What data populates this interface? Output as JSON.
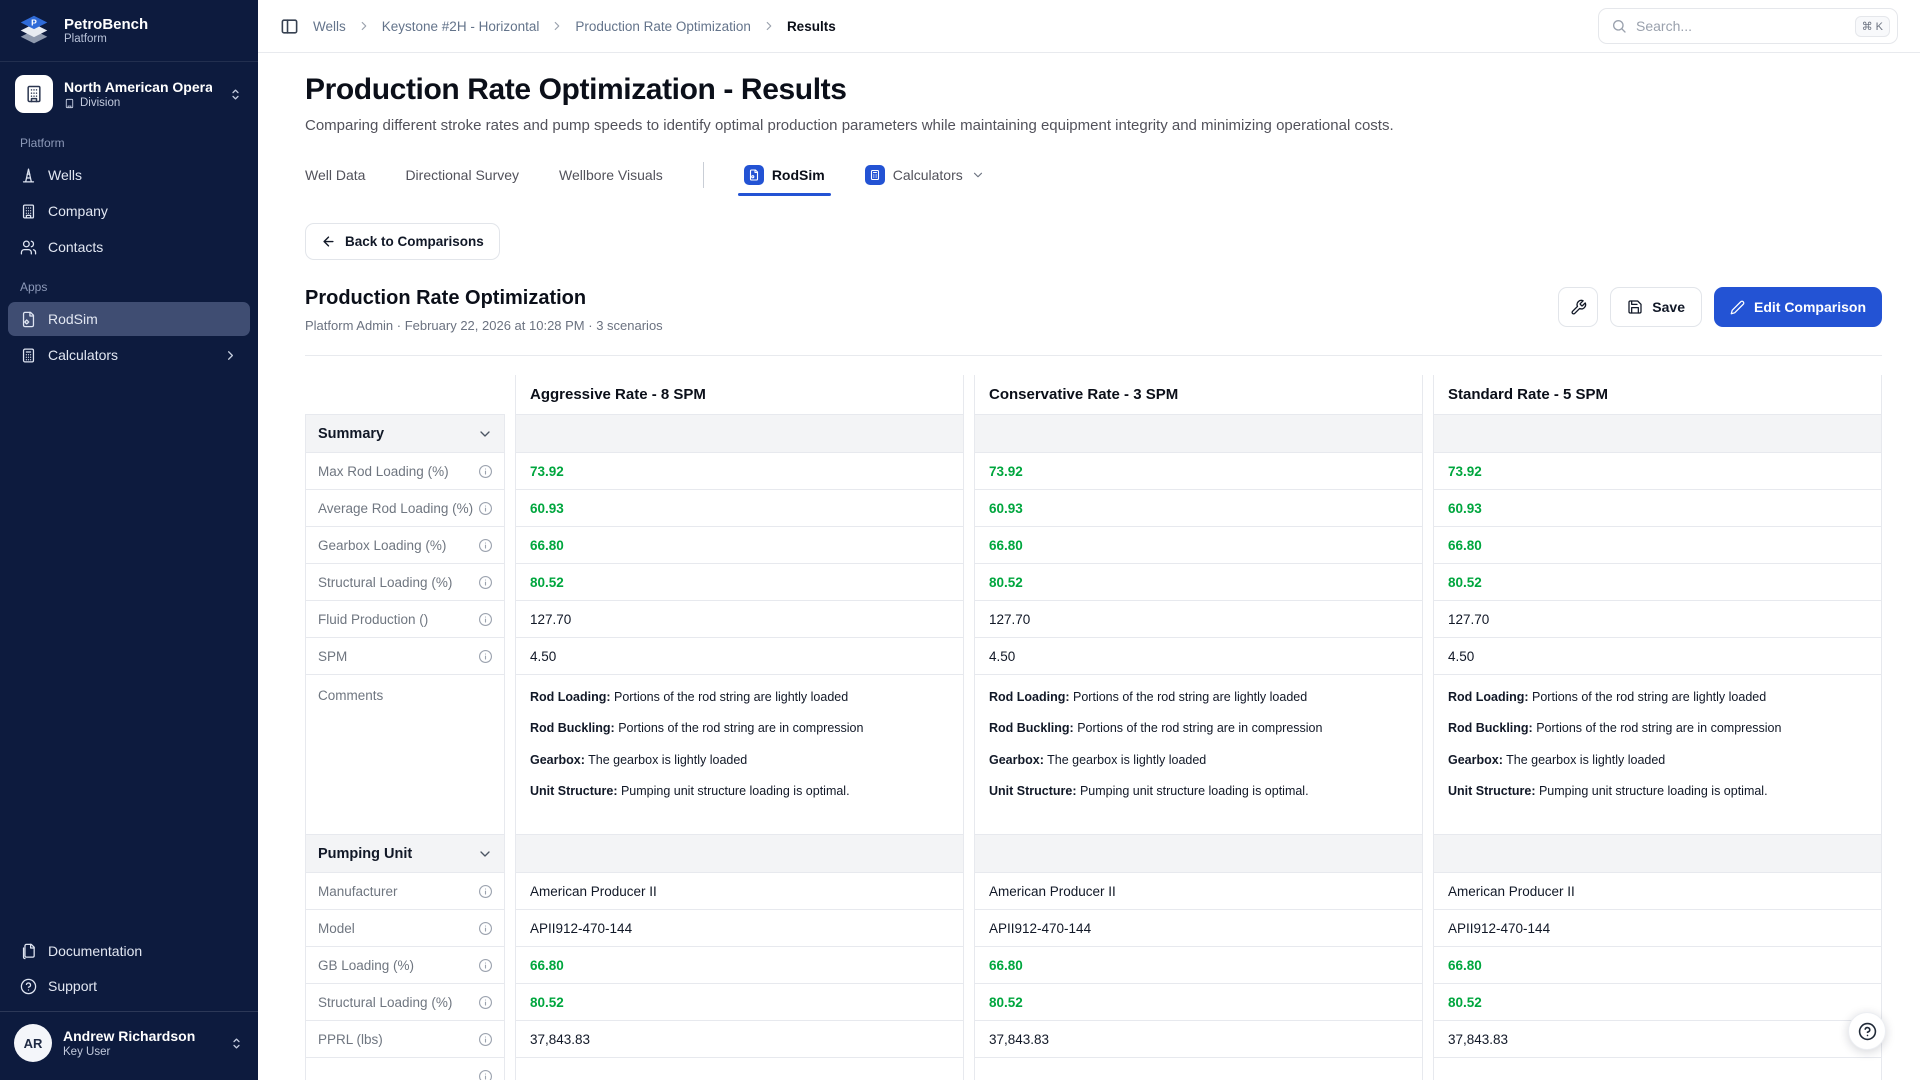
{
  "colors": {
    "accent": "#2353d4",
    "positive_value": "#00a63e",
    "sidebar_bg": "#0d1b3e"
  },
  "sidebar": {
    "brand": {
      "name": "PetroBench",
      "subtitle": "Platform"
    },
    "org": {
      "name": "North American Opera",
      "type": "Division"
    },
    "sections": [
      {
        "label": "Platform",
        "items": [
          {
            "label": "Wells",
            "icon": "derrick-icon"
          },
          {
            "label": "Company",
            "icon": "building-icon"
          },
          {
            "label": "Contacts",
            "icon": "users-icon"
          }
        ]
      },
      {
        "label": "Apps",
        "items": [
          {
            "label": "RodSim",
            "icon": "rodsim-app-icon",
            "active": true
          },
          {
            "label": "Calculators",
            "icon": "calculator-icon",
            "chevron": true
          }
        ]
      }
    ],
    "footer": {
      "documentation_label": "Documentation",
      "support_label": "Support",
      "user": {
        "initials": "AR",
        "name": "Andrew Richardson",
        "role": "Key User"
      }
    }
  },
  "topbar": {
    "breadcrumbs": [
      "Wells",
      "Keystone #2H - Horizontal",
      "Production Rate Optimization",
      "Results"
    ],
    "search": {
      "placeholder": "Search...",
      "shortcut": "⌘ K"
    }
  },
  "page": {
    "title": "Production Rate Optimization - Results",
    "subtitle": "Comparing different stroke rates and pump speeds to identify optimal production parameters while maintaining equipment integrity and minimizing operational costs."
  },
  "tabs": {
    "items": [
      {
        "label": "Well Data"
      },
      {
        "label": "Directional Survey"
      },
      {
        "label": "Wellbore Visuals"
      },
      {
        "label": "RodSim",
        "active": true,
        "app_icon": "rodsim-app-icon"
      },
      {
        "label": "Calculators",
        "app_icon": "calculator-icon",
        "dropdown": true
      }
    ]
  },
  "toolbar": {
    "back_label": "Back to Comparisons",
    "section_title": "Production Rate Optimization",
    "meta": "Platform Admin · February 22, 2026 at 10:28 PM · 3 scenarios",
    "save_label": "Save",
    "edit_label": "Edit Comparison"
  },
  "comparison": {
    "scenarios": [
      "Aggressive Rate - 8 SPM",
      "Conservative Rate - 3 SPM",
      "Standard Rate - 5 SPM"
    ],
    "sections": [
      {
        "title": "Summary",
        "rows": [
          {
            "label": "Max Rod Loading (%)",
            "info": true,
            "highlight": true,
            "values": [
              "73.92",
              "73.92",
              "73.92"
            ]
          },
          {
            "label": "Average Rod Loading (%)",
            "info": true,
            "highlight": true,
            "values": [
              "60.93",
              "60.93",
              "60.93"
            ]
          },
          {
            "label": "Gearbox Loading (%)",
            "info": true,
            "highlight": true,
            "values": [
              "66.80",
              "66.80",
              "66.80"
            ]
          },
          {
            "label": "Structural Loading (%)",
            "info": true,
            "highlight": true,
            "values": [
              "80.52",
              "80.52",
              "80.52"
            ]
          },
          {
            "label": "Fluid Production ()",
            "info": true,
            "values": [
              "127.70",
              "127.70",
              "127.70"
            ]
          },
          {
            "label": "SPM",
            "info": true,
            "values": [
              "4.50",
              "4.50",
              "4.50"
            ]
          },
          {
            "label": "Comments",
            "info": false,
            "comments": [
              {
                "title": "Rod Loading:",
                "text": "Portions of the rod string are lightly loaded"
              },
              {
                "title": "Rod Buckling:",
                "text": "Portions of the rod string are in compression"
              },
              {
                "title": "Gearbox:",
                "text": "The gearbox is lightly loaded"
              },
              {
                "title": "Unit Structure:",
                "text": "Pumping unit structure loading is optimal."
              }
            ]
          }
        ]
      },
      {
        "title": "Pumping Unit",
        "rows": [
          {
            "label": "Manufacturer",
            "info": true,
            "values": [
              "American Producer II",
              "American Producer II",
              "American Producer II"
            ]
          },
          {
            "label": "Model",
            "info": true,
            "values": [
              "APII912-470-144",
              "APII912-470-144",
              "APII912-470-144"
            ]
          },
          {
            "label": "GB Loading (%)",
            "info": true,
            "highlight": true,
            "values": [
              "66.80",
              "66.80",
              "66.80"
            ]
          },
          {
            "label": "Structural Loading (%)",
            "info": true,
            "highlight": true,
            "values": [
              "80.52",
              "80.52",
              "80.52"
            ]
          },
          {
            "label": "PPRL (lbs)",
            "info": true,
            "values": [
              "37,843.83",
              "37,843.83",
              "37,843.83"
            ]
          },
          {
            "label": "",
            "info": true,
            "values": [
              "",
              "",
              ""
            ]
          }
        ]
      }
    ]
  },
  "help": {
    "label": "help"
  }
}
